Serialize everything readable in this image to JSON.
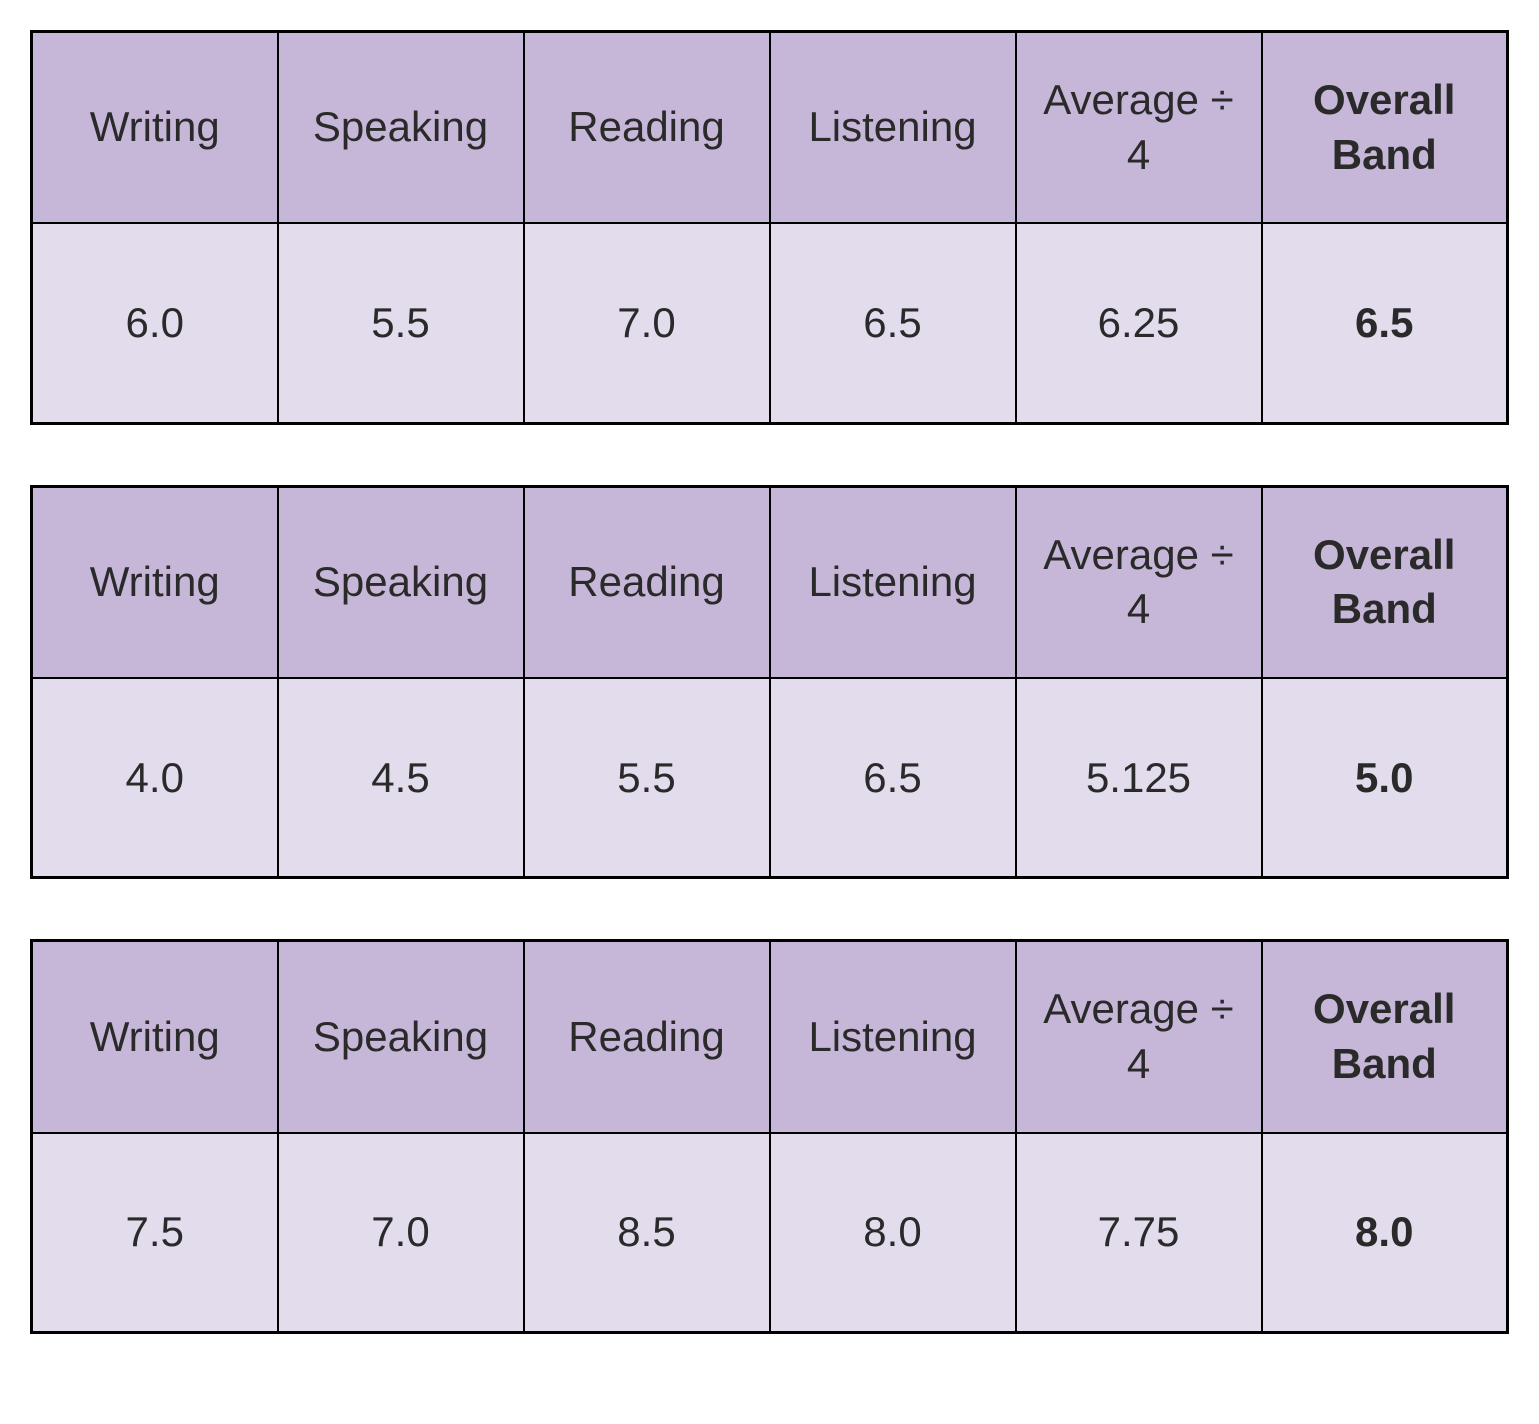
{
  "styling": {
    "header_bg": "#c6b7d9",
    "cell_bg": "#e3dced",
    "border_color": "#000000",
    "text_color": "#2a2a2a",
    "font_family": "Arial, Helvetica, sans-serif",
    "header_fontsize": 42,
    "cell_fontsize": 42,
    "page_bg": "#ffffff",
    "bold_columns": [
      5
    ],
    "column_widths_pct": [
      16.666,
      16.666,
      16.666,
      16.666,
      16.666,
      16.666
    ]
  },
  "columns": [
    {
      "label": "Writing",
      "bold": false
    },
    {
      "label": "Speaking",
      "bold": false
    },
    {
      "label": "Reading",
      "bold": false
    },
    {
      "label": "Listening",
      "bold": false
    },
    {
      "label": "Average ÷ 4",
      "bold": false
    },
    {
      "label": "Overall Band",
      "bold": true
    }
  ],
  "tables": [
    {
      "writing": "6.0",
      "speaking": "5.5",
      "reading": "7.0",
      "listening": "6.5",
      "average": "6.25",
      "overall": "6.5"
    },
    {
      "writing": "4.0",
      "speaking": "4.5",
      "reading": "5.5",
      "listening": "6.5",
      "average": "5.125",
      "overall": "5.0"
    },
    {
      "writing": "7.5",
      "speaking": "7.0",
      "reading": "8.5",
      "listening": "8.0",
      "average": "7.75",
      "overall": "8.0"
    }
  ]
}
